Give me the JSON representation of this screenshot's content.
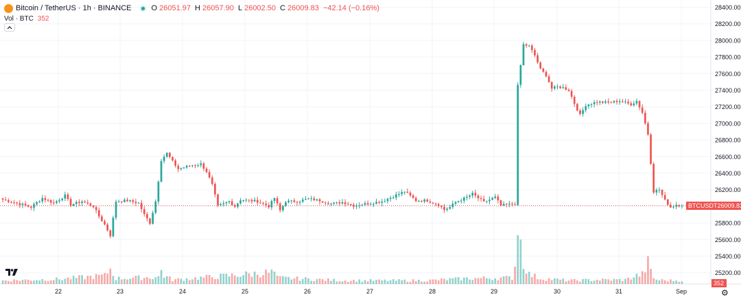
{
  "legend": {
    "symbol": "Bitcoin / TetherUS · 1h · BINANCE",
    "o_label": "O",
    "o_value": "26051.97",
    "h_label": "H",
    "h_value": "26057.90",
    "l_label": "L",
    "l_value": "26002.50",
    "c_label": "C",
    "c_value": "26009.83",
    "change": "−42.14 (−0.16%)"
  },
  "volume_legend": {
    "label": "Vol · BTC",
    "value": "352"
  },
  "collapse_icon": "chevron-up-icon",
  "settings_icon": "gear-icon",
  "colors": {
    "up": "#26a69a",
    "down": "#ef5350",
    "grid": "#f0f3fa",
    "text": "#131722"
  },
  "price_tag": {
    "symbol": "BTCUSDT",
    "price": "26009.83"
  },
  "volume_tag": "352",
  "chart_data": {
    "type": "candlestick",
    "y_ticks": [
      "28400.00",
      "28200.00",
      "28000.00",
      "27800.00",
      "27600.00",
      "27400.00",
      "27200.00",
      "27000.00",
      "26800.00",
      "26600.00",
      "26400.00",
      "26200.00",
      "26000.00",
      "25800.00",
      "25600.00",
      "25400.00",
      "25200.00"
    ],
    "ylim": [
      25100,
      28450
    ],
    "x_ticks": [
      "22",
      "23",
      "24",
      "25",
      "26",
      "27",
      "28",
      "29",
      "30",
      "31",
      "Sep"
    ],
    "last_close": 26009.83,
    "anchors": [
      [
        0,
        26080
      ],
      [
        6,
        26030
      ],
      [
        10,
        25990
      ],
      [
        14,
        26100
      ],
      [
        18,
        26040
      ],
      [
        22,
        26130
      ],
      [
        24,
        26020
      ],
      [
        28,
        26060
      ],
      [
        32,
        26000
      ],
      [
        34,
        25880
      ],
      [
        36,
        25780
      ],
      [
        38,
        25650
      ],
      [
        40,
        26060
      ],
      [
        44,
        26070
      ],
      [
        48,
        26040
      ],
      [
        50,
        25900
      ],
      [
        52,
        25800
      ],
      [
        54,
        26060
      ],
      [
        56,
        26560
      ],
      [
        58,
        26640
      ],
      [
        60,
        26540
      ],
      [
        62,
        26450
      ],
      [
        66,
        26490
      ],
      [
        70,
        26510
      ],
      [
        72,
        26420
      ],
      [
        74,
        26260
      ],
      [
        76,
        26000
      ],
      [
        80,
        26060
      ],
      [
        82,
        26000
      ],
      [
        84,
        26080
      ],
      [
        90,
        26060
      ],
      [
        94,
        26000
      ],
      [
        96,
        26100
      ],
      [
        98,
        25950
      ],
      [
        100,
        26060
      ],
      [
        104,
        26060
      ],
      [
        108,
        26090
      ],
      [
        112,
        26070
      ],
      [
        116,
        26030
      ],
      [
        120,
        26050
      ],
      [
        124,
        26010
      ],
      [
        130,
        26040
      ],
      [
        134,
        26060
      ],
      [
        138,
        26120
      ],
      [
        142,
        26180
      ],
      [
        146,
        26070
      ],
      [
        150,
        26070
      ],
      [
        154,
        26020
      ],
      [
        156,
        25960
      ],
      [
        158,
        25990
      ],
      [
        160,
        26050
      ],
      [
        164,
        26110
      ],
      [
        166,
        26150
      ],
      [
        170,
        26050
      ],
      [
        174,
        26110
      ],
      [
        176,
        26010
      ],
      [
        178,
        26020
      ],
      [
        181,
        26030
      ],
      [
        182,
        27450
      ],
      [
        184,
        27950
      ],
      [
        186,
        27930
      ],
      [
        188,
        27820
      ],
      [
        190,
        27650
      ],
      [
        192,
        27580
      ],
      [
        194,
        27420
      ],
      [
        196,
        27440
      ],
      [
        198,
        27430
      ],
      [
        200,
        27400
      ],
      [
        202,
        27240
      ],
      [
        204,
        27100
      ],
      [
        206,
        27220
      ],
      [
        210,
        27260
      ],
      [
        214,
        27250
      ],
      [
        218,
        27270
      ],
      [
        222,
        27230
      ],
      [
        224,
        27270
      ],
      [
        226,
        27130
      ],
      [
        228,
        26870
      ],
      [
        230,
        26180
      ],
      [
        232,
        26200
      ],
      [
        234,
        26070
      ],
      [
        236,
        25990
      ],
      [
        238,
        26020
      ],
      [
        240,
        26010
      ]
    ],
    "volume_anchors": [
      [
        0,
        5
      ],
      [
        20,
        7
      ],
      [
        36,
        12
      ],
      [
        38,
        22
      ],
      [
        40,
        8
      ],
      [
        55,
        10
      ],
      [
        56,
        20
      ],
      [
        57,
        12
      ],
      [
        60,
        6
      ],
      [
        96,
        17
      ],
      [
        97,
        9
      ],
      [
        120,
        5
      ],
      [
        150,
        5
      ],
      [
        164,
        8
      ],
      [
        180,
        9
      ],
      [
        181,
        26
      ],
      [
        182,
        98
      ],
      [
        183,
        60
      ],
      [
        184,
        32
      ],
      [
        186,
        14
      ],
      [
        190,
        8
      ],
      [
        200,
        5
      ],
      [
        210,
        6
      ],
      [
        220,
        6
      ],
      [
        224,
        12
      ],
      [
        226,
        14
      ],
      [
        228,
        30
      ],
      [
        229,
        18
      ],
      [
        230,
        9
      ],
      [
        231,
        6
      ],
      [
        236,
        5
      ],
      [
        240,
        5
      ]
    ],
    "volume_max": 100
  }
}
